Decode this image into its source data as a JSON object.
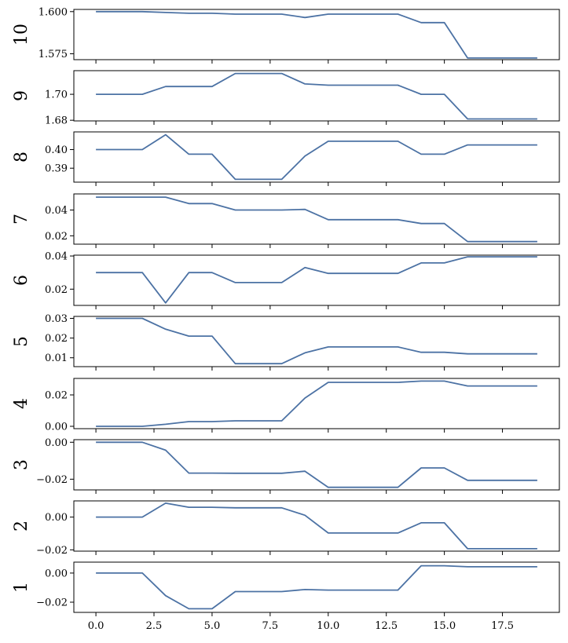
{
  "chart_data": {
    "type": "line",
    "layout": "stacked-panels-shared-x",
    "x": [
      0,
      1,
      2,
      3,
      4,
      5,
      6,
      7,
      8,
      9,
      10,
      11,
      12,
      13,
      14,
      15,
      16,
      17,
      18,
      19
    ],
    "xlim": [
      -0.95,
      19.95
    ],
    "xticks": [
      0.0,
      2.5,
      5.0,
      7.5,
      10.0,
      12.5,
      15.0,
      17.5
    ],
    "xtick_labels": [
      "0.0",
      "2.5",
      "5.0",
      "7.5",
      "10.0",
      "12.5",
      "15.0",
      "17.5"
    ],
    "line_color": "#4c72a4",
    "grid": false,
    "legend": "none",
    "panels": [
      {
        "label": "10",
        "ylim": [
          1.5715,
          1.6013
        ],
        "yticks": [
          1.575,
          1.6
        ],
        "ytick_labels": [
          "1.575",
          "1.600"
        ],
        "values": [
          1.6,
          1.6,
          1.6,
          1.5995,
          1.599,
          1.599,
          1.5985,
          1.5985,
          1.5985,
          1.5965,
          1.5985,
          1.5985,
          1.5985,
          1.5985,
          1.5935,
          1.5935,
          1.5725,
          1.5725,
          1.5725,
          1.5725
        ]
      },
      {
        "label": "9",
        "ylim": [
          1.6795,
          1.7182
        ],
        "yticks": [
          1.68,
          1.7
        ],
        "ytick_labels": [
          "1.68",
          "1.70"
        ],
        "values": [
          1.7,
          1.7,
          1.7,
          1.706,
          1.706,
          1.706,
          1.716,
          1.716,
          1.716,
          1.708,
          1.707,
          1.707,
          1.707,
          1.707,
          1.7,
          1.7,
          1.681,
          1.681,
          1.681,
          1.681
        ]
      },
      {
        "label": "8",
        "ylim": [
          0.3825,
          0.4095
        ],
        "yticks": [
          0.39,
          0.4
        ],
        "ytick_labels": [
          "0.39",
          "0.40"
        ],
        "values": [
          0.4,
          0.4,
          0.4,
          0.408,
          0.3975,
          0.3975,
          0.384,
          0.384,
          0.384,
          0.3965,
          0.4045,
          0.4045,
          0.4045,
          0.4045,
          0.3975,
          0.3975,
          0.4025,
          0.4025,
          0.4025,
          0.4025
        ]
      },
      {
        "label": "7",
        "ylim": [
          0.0135,
          0.0525
        ],
        "yticks": [
          0.02,
          0.04
        ],
        "ytick_labels": [
          "0.02",
          "0.04"
        ],
        "values": [
          0.05,
          0.05,
          0.05,
          0.05,
          0.045,
          0.045,
          0.04,
          0.04,
          0.04,
          0.0405,
          0.0325,
          0.0325,
          0.0325,
          0.0325,
          0.0295,
          0.0295,
          0.0155,
          0.0155,
          0.0155,
          0.0155
        ]
      },
      {
        "label": "6",
        "ylim": [
          0.0102,
          0.0405
        ],
        "yticks": [
          0.02,
          0.04
        ],
        "ytick_labels": [
          "0.02",
          "0.04"
        ],
        "values": [
          0.03,
          0.03,
          0.03,
          0.0117,
          0.03,
          0.03,
          0.024,
          0.024,
          0.024,
          0.033,
          0.0295,
          0.0295,
          0.0295,
          0.0295,
          0.0358,
          0.0358,
          0.0395,
          0.0395,
          0.0395,
          0.0395
        ]
      },
      {
        "label": "5",
        "ylim": [
          0.0055,
          0.031
        ],
        "yticks": [
          0.01,
          0.02,
          0.03
        ],
        "ytick_labels": [
          "0.01",
          "0.02",
          "0.03"
        ],
        "values": [
          0.03,
          0.03,
          0.03,
          0.0245,
          0.021,
          0.021,
          0.007,
          0.007,
          0.007,
          0.0125,
          0.0155,
          0.0155,
          0.0155,
          0.0155,
          0.0128,
          0.0128,
          0.012,
          0.012,
          0.012,
          0.012
        ]
      },
      {
        "label": "4",
        "ylim": [
          -0.0015,
          0.0305
        ],
        "yticks": [
          0.0,
          0.02
        ],
        "ytick_labels": [
          "0.00",
          "0.02"
        ],
        "values": [
          0.0,
          0.0,
          0.0,
          0.0013,
          0.003,
          0.003,
          0.0035,
          0.0035,
          0.0035,
          0.018,
          0.028,
          0.028,
          0.028,
          0.028,
          0.0288,
          0.0288,
          0.0257,
          0.0257,
          0.0257,
          0.0257
        ]
      },
      {
        "label": "3",
        "ylim": [
          -0.0258,
          0.0014
        ],
        "yticks": [
          0.0,
          -0.02
        ],
        "ytick_labels": [
          "0.00",
          "−0.02"
        ],
        "values": [
          0.0,
          0.0,
          0.0,
          -0.0043,
          -0.0167,
          -0.0167,
          -0.0168,
          -0.0168,
          -0.0168,
          -0.0157,
          -0.0244,
          -0.0244,
          -0.0244,
          -0.0244,
          -0.0139,
          -0.0139,
          -0.0206,
          -0.0206,
          -0.0206,
          -0.0206
        ]
      },
      {
        "label": "2",
        "ylim": [
          -0.0208,
          0.0099
        ],
        "yticks": [
          0.0,
          -0.02
        ],
        "ytick_labels": [
          "0.00",
          "−0.02"
        ],
        "values": [
          0.0,
          0.0,
          0.0,
          0.0085,
          0.006,
          0.006,
          0.0057,
          0.0057,
          0.0057,
          0.0011,
          -0.0097,
          -0.0097,
          -0.0097,
          -0.0097,
          -0.0035,
          -0.0035,
          -0.0193,
          -0.0193,
          -0.0193,
          -0.0193
        ]
      },
      {
        "label": "1",
        "ylim": [
          -0.027,
          0.0075
        ],
        "yticks": [
          0.0,
          -0.02
        ],
        "ytick_labels": [
          "0.00",
          "−0.02"
        ],
        "values": [
          0.0,
          0.0,
          0.0,
          -0.0155,
          -0.0245,
          -0.0245,
          -0.0127,
          -0.0127,
          -0.0127,
          -0.0113,
          -0.0117,
          -0.0117,
          -0.0117,
          -0.0117,
          0.005,
          0.005,
          0.0043,
          0.0043,
          0.0043,
          0.0043
        ]
      }
    ]
  }
}
